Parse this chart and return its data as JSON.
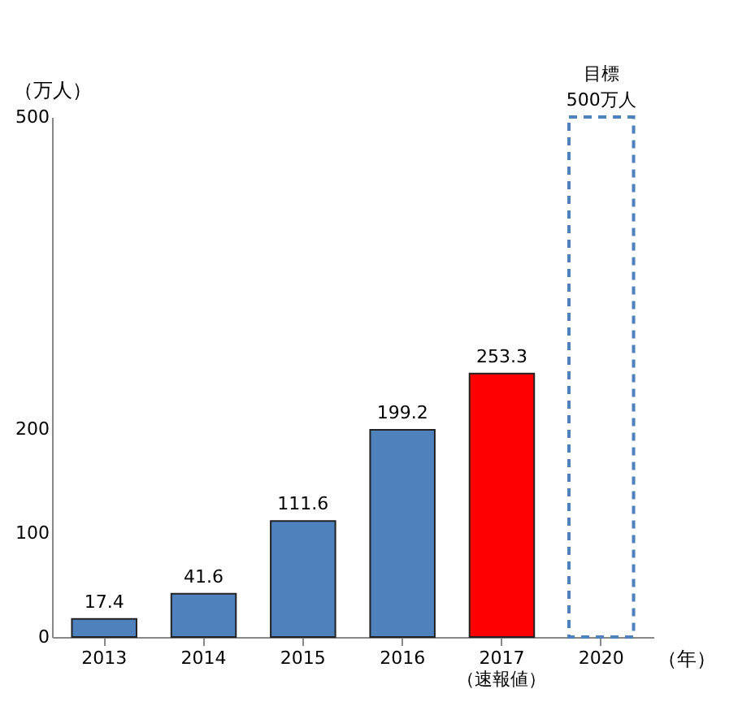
{
  "chart_data": {
    "type": "bar",
    "ylabel": "（万人）",
    "xlabel": "（年）",
    "categories": [
      "2013",
      "2014",
      "2015",
      "2016",
      "2017\n（速報値）",
      "2020"
    ],
    "series": [
      {
        "colors": [
          "#4f81bd",
          "#4f81bd",
          "#4f81bd",
          "#4f81bd",
          "#ff0000",
          null
        ],
        "values": [
          17.4,
          41.6,
          111.6,
          199.2,
          253.3,
          null
        ],
        "value_labels": [
          "17.4",
          "41.6",
          "111.6",
          "199.2",
          "253.3",
          null
        ]
      },
      {
        "color": "#4f81bd",
        "line_style": "dashed",
        "values": [
          null,
          null,
          null,
          null,
          null,
          500
        ],
        "value_labels": [
          null,
          null,
          null,
          null,
          null,
          "500万人"
        ]
      }
    ],
    "annotations": [
      {
        "text": "目標",
        "x": "2020",
        "y": 500
      }
    ],
    "ylim": [
      0,
      500
    ],
    "yticks": [
      0,
      100,
      200,
      500
    ]
  }
}
